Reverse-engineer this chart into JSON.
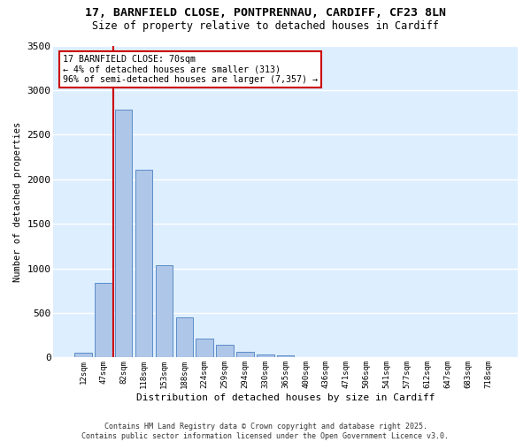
{
  "title_line1": "17, BARNFIELD CLOSE, PONTPRENNAU, CARDIFF, CF23 8LN",
  "title_line2": "Size of property relative to detached houses in Cardiff",
  "xlabel": "Distribution of detached houses by size in Cardiff",
  "ylabel": "Number of detached properties",
  "categories": [
    "12sqm",
    "47sqm",
    "82sqm",
    "118sqm",
    "153sqm",
    "188sqm",
    "224sqm",
    "259sqm",
    "294sqm",
    "330sqm",
    "365sqm",
    "400sqm",
    "436sqm",
    "471sqm",
    "506sqm",
    "541sqm",
    "577sqm",
    "612sqm",
    "647sqm",
    "683sqm",
    "718sqm"
  ],
  "values": [
    55,
    840,
    2780,
    2110,
    1035,
    455,
    210,
    145,
    60,
    35,
    20,
    0,
    0,
    0,
    0,
    0,
    0,
    0,
    0,
    0,
    0
  ],
  "bar_color": "#aec6e8",
  "bar_edge_color": "#5b8cc8",
  "background_color": "#ddeeff",
  "grid_color": "#ffffff",
  "vline_color": "#cc0000",
  "vline_x_index": 1.5,
  "annotation_text": "17 BARNFIELD CLOSE: 70sqm\n← 4% of detached houses are smaller (313)\n96% of semi-detached houses are larger (7,357) →",
  "annotation_box_color": "#ffffff",
  "annotation_box_edge": "#cc0000",
  "ylim": [
    0,
    3500
  ],
  "yticks": [
    0,
    500,
    1000,
    1500,
    2000,
    2500,
    3000,
    3500
  ],
  "footnote": "Contains HM Land Registry data © Crown copyright and database right 2025.\nContains public sector information licensed under the Open Government Licence v3.0."
}
